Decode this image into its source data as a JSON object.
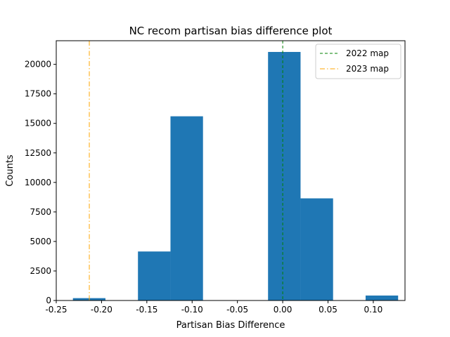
{
  "chart_data": {
    "type": "bar",
    "title": "NC recom partisan bias difference plot",
    "xlabel": "Partisan Bias Difference",
    "ylabel": "Counts",
    "xlim": [
      -0.25,
      0.135
    ],
    "ylim": [
      0,
      22000
    ],
    "xticks": [
      "-0.25",
      "-0.20",
      "-0.15",
      "-0.10",
      "-0.05",
      "0.00",
      "0.05",
      "0.10"
    ],
    "yticks": [
      "0",
      "2500",
      "5000",
      "7500",
      "10000",
      "12500",
      "15000",
      "17500",
      "20000"
    ],
    "bar_color": "#1f77b4",
    "bins": [
      {
        "x0": -0.2316,
        "x1": -0.1957,
        "count": 200
      },
      {
        "x0": -0.1957,
        "x1": -0.1598,
        "count": 0
      },
      {
        "x0": -0.1598,
        "x1": -0.1239,
        "count": 4150
      },
      {
        "x0": -0.1239,
        "x1": -0.088,
        "count": 15600
      },
      {
        "x0": -0.088,
        "x1": -0.0521,
        "count": 0
      },
      {
        "x0": -0.0521,
        "x1": -0.0162,
        "count": 0
      },
      {
        "x0": -0.0162,
        "x1": 0.0197,
        "count": 21050
      },
      {
        "x0": 0.0197,
        "x1": 0.0556,
        "count": 8650
      },
      {
        "x0": 0.0556,
        "x1": 0.0915,
        "count": 0
      },
      {
        "x0": 0.0915,
        "x1": 0.1274,
        "count": 420
      }
    ],
    "vlines": [
      {
        "name": "2022 map",
        "x": 0.0,
        "color": "#008000",
        "dash": "4,3"
      },
      {
        "name": "2023 map",
        "x": -0.2135,
        "color": "#ffa500",
        "dash": "7,3,1.5,3"
      }
    ],
    "legend_position": "top-right"
  }
}
